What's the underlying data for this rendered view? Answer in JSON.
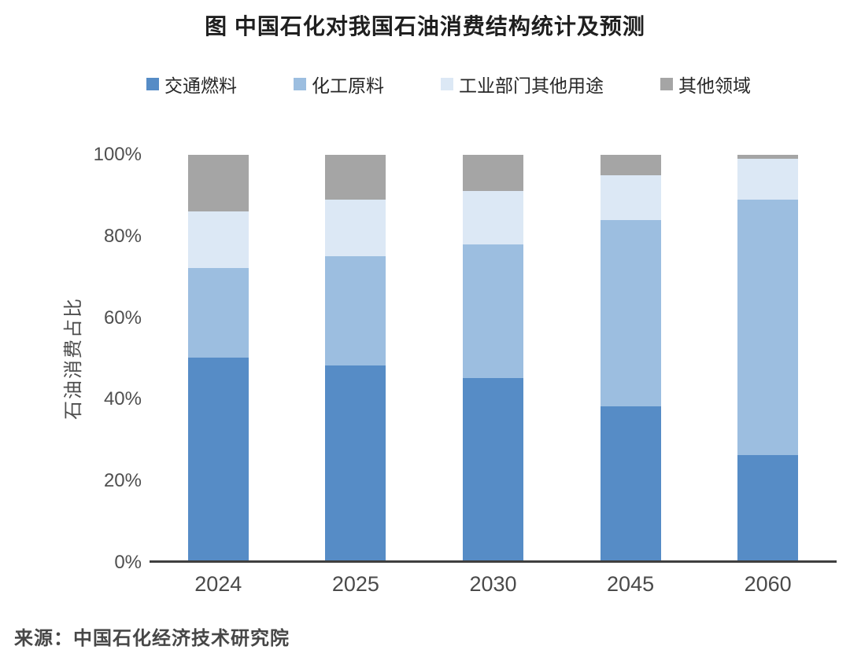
{
  "source": "来源：中国石化经济技术研究院",
  "chart_data": {
    "type": "bar",
    "subtype": "stacked-percent",
    "title": "图 中国石化对我国石油消费结构统计及预测",
    "ylabel": "石油消费占比",
    "xlabel": "",
    "categories": [
      "2024",
      "2025",
      "2030",
      "2045",
      "2060"
    ],
    "series": [
      {
        "name": "交通燃料",
        "color": "#568cc6",
        "values": [
          50,
          48,
          45,
          38,
          26
        ]
      },
      {
        "name": "化工原料",
        "color": "#9cbee0",
        "values": [
          22,
          27,
          33,
          46,
          63
        ]
      },
      {
        "name": "工业部门其他用途",
        "color": "#dce8f5",
        "values": [
          14,
          14,
          13,
          11,
          10
        ]
      },
      {
        "name": "其他领域",
        "color": "#a5a5a5",
        "values": [
          14,
          11,
          9,
          5,
          1
        ]
      }
    ],
    "yticks": [
      "100%",
      "80%",
      "60%",
      "40%",
      "20%",
      "0%"
    ],
    "ylim": [
      0,
      100
    ],
    "grid": false,
    "legend_position": "top",
    "axis_line_color": "#3f3f3f"
  }
}
